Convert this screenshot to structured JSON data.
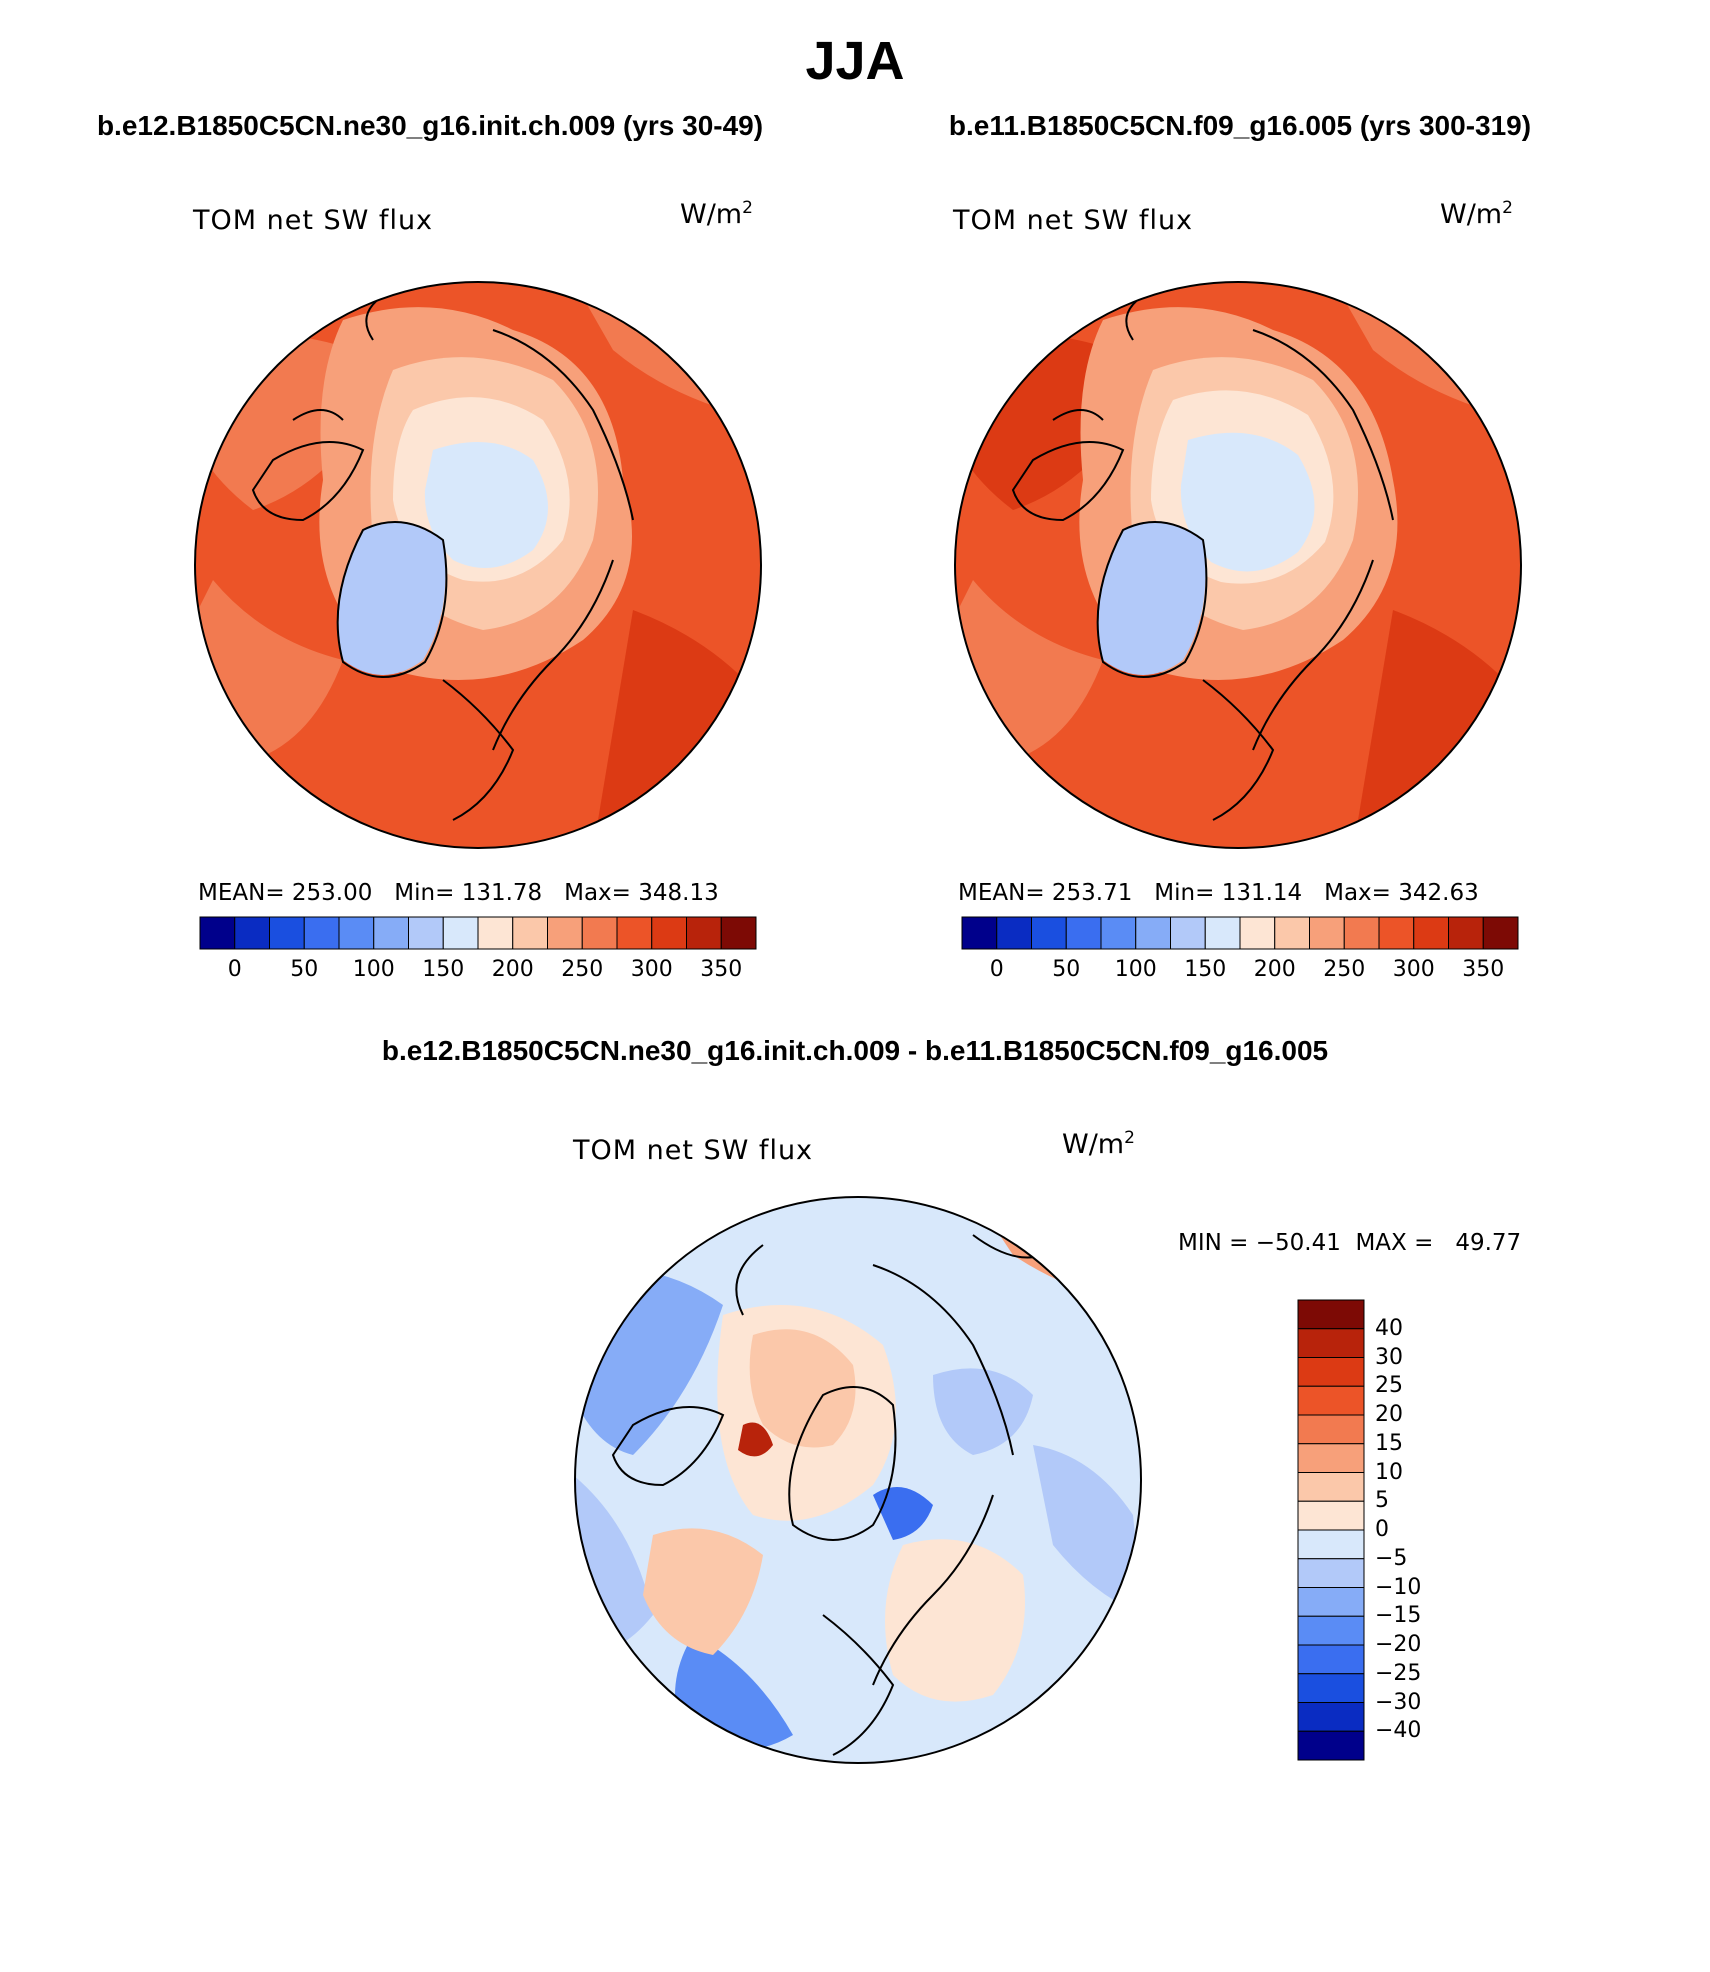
{
  "title": "JJA",
  "panels": [
    {
      "case_title": "b.e12.B1850C5CN.ne30_g16.init.ch.009 (yrs 30-49)",
      "label": "TOM net SW flux",
      "units": "W/m",
      "units_exp": "2",
      "stats": "MEAN= 253.00   Min= 131.78   Max= 348.13"
    },
    {
      "case_title": "b.e11.B1850C5CN.f09_g16.005 (yrs 300-319)",
      "label": "TOM net SW flux",
      "units": "W/m",
      "units_exp": "2",
      "stats": "MEAN= 253.71   Min= 131.14   Max= 342.63"
    }
  ],
  "diff_panel": {
    "case_title": "b.e12.B1850C5CN.ne30_g16.init.ch.009 - b.e11.B1850C5CN.f09_g16.005",
    "label": "TOM net SW flux",
    "units": "W/m",
    "units_exp": "2",
    "stats": "MIN = −50.41  MAX =   49.77"
  },
  "colorbar_abs": {
    "colors": [
      "#00008b",
      "#0a2cc2",
      "#1a4fe0",
      "#3a6ef0",
      "#5a8cf5",
      "#86acf7",
      "#b2c9f9",
      "#d8e8fb",
      "#fde5d4",
      "#fbc8aa",
      "#f7a07a",
      "#f27a50",
      "#ec5428",
      "#dc3a14",
      "#b8230b",
      "#7d0a05"
    ],
    "ticks": [
      "0",
      "50",
      "100",
      "150",
      "200",
      "250",
      "300",
      "350"
    ]
  },
  "colorbar_diff": {
    "colors": [
      "#7d0a05",
      "#b8230b",
      "#dc3a14",
      "#ec5428",
      "#f27a50",
      "#f7a07a",
      "#fbc8aa",
      "#fde5d4",
      "#d8e8fb",
      "#b2c9f9",
      "#86acf7",
      "#5a8cf5",
      "#3a6ef0",
      "#1a4fe0",
      "#0a2cc2",
      "#00008b"
    ],
    "ticks": [
      "40",
      "30",
      "25",
      "20",
      "15",
      "10",
      "5",
      "0",
      "−5",
      "−10",
      "−15",
      "−20",
      "−25",
      "−30",
      "−40"
    ]
  }
}
